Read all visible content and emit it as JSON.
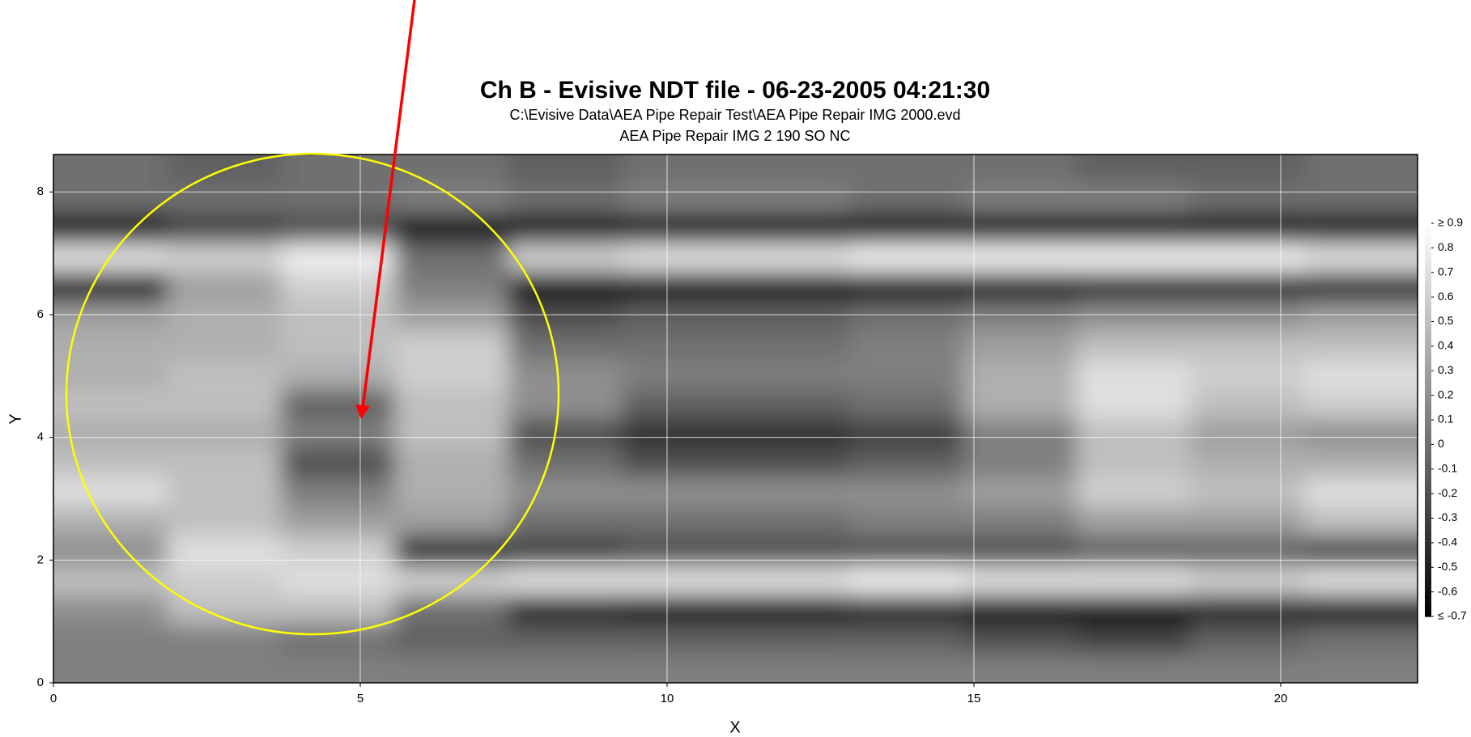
{
  "chart_data": {
    "type": "heatmap",
    "title": "Ch B - Evisive NDT file - 06-23-2005 04:21:30",
    "subtitle": [
      "C:\\Evisive Data\\AEA Pipe Repair Test\\AEA Pipe Repair IMG 2000.evd",
      "AEA Pipe Repair IMG 2 190 SO NC"
    ],
    "xlabel": "X",
    "ylabel": "Y",
    "xlim": [
      0,
      22.23
    ],
    "ylim": [
      0,
      8.61
    ],
    "xticks": [
      0,
      5,
      10,
      15,
      20
    ],
    "yticks": [
      0,
      2,
      4,
      6,
      8
    ],
    "grid": true,
    "colormap": [
      "#000000",
      "#ffffff"
    ],
    "zlim": [
      -0.7,
      0.9
    ],
    "zticks": [
      {
        "value": 0.9,
        "label": "≥ 0.9"
      },
      0.8,
      0.7,
      0.6,
      0.5,
      0.4,
      0.3,
      0.2,
      0.1,
      0,
      -0.1,
      -0.2,
      -0.3,
      -0.4,
      -0.5,
      -0.6,
      {
        "value": -0.7,
        "label": "≤ -0.7"
      }
    ],
    "z": [
      [
        0.1,
        0.1,
        0.1,
        0.1,
        0.1,
        0.1,
        0.1,
        0.1,
        0.1,
        0.1,
        0.1,
        0.1
      ],
      [
        0.1,
        0.1,
        0,
        -0.1,
        -0.1,
        -0.1,
        -0.1,
        -0.1,
        -0.2,
        -0.3,
        -0.1,
        0
      ],
      [
        0.2,
        0.5,
        0.5,
        0,
        -0.5,
        -0.6,
        -0.6,
        -0.5,
        -0.6,
        -0.6,
        -0.5,
        -0.6
      ],
      [
        0.5,
        0.6,
        0.7,
        0.6,
        0.7,
        0.7,
        0.7,
        0.8,
        0.7,
        0.7,
        0.6,
        0.7
      ],
      [
        0.2,
        0.7,
        0.6,
        -0.5,
        -0.3,
        -0.2,
        -0.2,
        -0.2,
        -0.2,
        -0.1,
        -0.1,
        -0.3
      ],
      [
        0.4,
        0.5,
        0.3,
        0.3,
        0,
        0,
        0,
        0.1,
        0.1,
        0.3,
        0.3,
        0.5
      ],
      [
        0.7,
        0.5,
        0.1,
        0.4,
        0.2,
        0.2,
        0.2,
        0.2,
        0.3,
        0.6,
        0.5,
        0.7
      ],
      [
        0.5,
        0.5,
        -0.2,
        0.4,
        0,
        -0.2,
        -0.2,
        -0.1,
        0.1,
        0.5,
        0.4,
        0.4
      ],
      [
        0.4,
        0.4,
        0.1,
        0.5,
        -0.2,
        -0.4,
        -0.4,
        -0.3,
        0.1,
        0.5,
        0.3,
        0.2
      ],
      [
        0.5,
        0.5,
        -0.1,
        0.5,
        0.2,
        -0.1,
        -0.1,
        0,
        0.4,
        0.7,
        0.5,
        0.6
      ],
      [
        0.4,
        0.5,
        0.4,
        0.6,
        0.2,
        0.1,
        0.1,
        0.1,
        0.4,
        0.7,
        0.6,
        0.7
      ],
      [
        0.4,
        0.4,
        0.5,
        0.6,
        0,
        0,
        0,
        0.1,
        0.3,
        0.5,
        0.5,
        0.5
      ],
      [
        0.3,
        0.4,
        0.5,
        0.3,
        -0.2,
        -0.1,
        -0.1,
        0,
        0.1,
        0.2,
        0.2,
        0.3
      ],
      [
        -0.6,
        0.3,
        0.6,
        0.1,
        -0.7,
        -0.7,
        -0.7,
        -0.7,
        -0.6,
        -0.5,
        -0.5,
        -0.5
      ],
      [
        0.7,
        0.6,
        0.8,
        0,
        0.6,
        0.7,
        0.7,
        0.8,
        0.8,
        0.8,
        0.8,
        0.7
      ],
      [
        -0.6,
        -0.3,
        -0.2,
        -0.6,
        -0.7,
        -0.7,
        -0.7,
        -0.7,
        -0.7,
        -0.7,
        -0.7,
        -0.6
      ],
      [
        0,
        0,
        0,
        0.1,
        0,
        0.1,
        0.1,
        0,
        0.1,
        0.1,
        0,
        0
      ],
      [
        0,
        -0.1,
        0,
        0,
        -0.1,
        0,
        0,
        0,
        0,
        -0.1,
        -0.1,
        0
      ]
    ]
  }
}
